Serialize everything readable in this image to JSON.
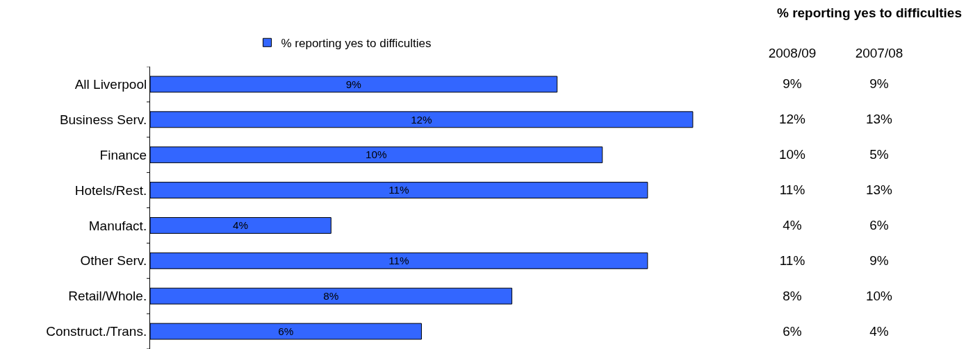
{
  "chart_data": [
    {
      "type": "bar",
      "orientation": "horizontal",
      "categories": [
        "All Liverpool",
        "Business Serv.",
        "Finance",
        "Hotels/Rest.",
        "Manufact.",
        "Other Serv.",
        "Retail/Whole.",
        "Construct./Trans."
      ],
      "series": [
        {
          "name": "% reporting yes to difficulties",
          "color": "#3366ff",
          "values": [
            9,
            12,
            10,
            11,
            4,
            11,
            8,
            6
          ],
          "value_labels": [
            "9%",
            "12%",
            "10%",
            "11%",
            "4%",
            "11%",
            "8%",
            "6%"
          ]
        }
      ],
      "legend": "top",
      "tick_labels": "y"
    },
    {
      "type": "other",
      "title": "% reporting yes to difficulties",
      "categories": [
        "2008/09",
        "2007/08"
      ],
      "cell_labels": [
        [
          "9%",
          "9%"
        ],
        [
          "12%",
          "13%"
        ],
        [
          "10%",
          "5%"
        ],
        [
          "11%",
          "13%"
        ],
        [
          "4%",
          "6%"
        ],
        [
          "11%",
          "9%"
        ],
        [
          "8%",
          "10%"
        ],
        [
          "6%",
          "4%"
        ]
      ]
    }
  ]
}
